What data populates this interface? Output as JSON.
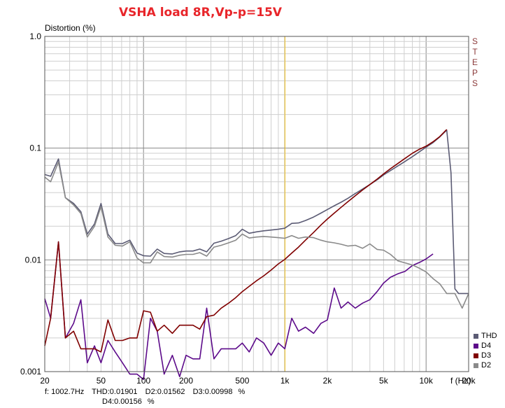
{
  "chart_data": {
    "type": "line",
    "title": "VSHA load 8R,Vp-p=15V",
    "ylabel": "Distortion (%)",
    "xlabel": "f (Hz)",
    "xscale": "log",
    "yscale": "log",
    "xlim": [
      20,
      20000
    ],
    "ylim": [
      0.001,
      1.0
    ],
    "x_tick_labels": [
      "20",
      "50",
      "100",
      "200",
      "500",
      "1k",
      "2k",
      "5k",
      "10k",
      "20k"
    ],
    "x_tick_values": [
      20,
      50,
      100,
      200,
      500,
      1000,
      2000,
      5000,
      10000,
      20000
    ],
    "y_tick_labels": [
      "1.0",
      "0.1",
      "0.01",
      "0.001"
    ],
    "y_tick_values": [
      1.0,
      0.1,
      0.01,
      0.001
    ],
    "grid": true,
    "cursor_x": 1002.7,
    "side_label": "STEPS",
    "legend_position": "bottom-right",
    "series": [
      {
        "name": "THD",
        "color": "#5b5b74",
        "x": [
          20,
          22,
          25,
          28,
          32,
          36,
          40,
          45,
          50,
          56,
          63,
          71,
          80,
          90,
          100,
          112,
          125,
          140,
          160,
          180,
          200,
          224,
          250,
          280,
          315,
          355,
          400,
          450,
          500,
          560,
          630,
          710,
          800,
          900,
          1000,
          1120,
          1250,
          1400,
          1600,
          1800,
          2000,
          2240,
          2500,
          2800,
          3150,
          3550,
          4000,
          4500,
          5000,
          5600,
          6300,
          7100,
          8000,
          9000,
          10000,
          11200,
          12500,
          14000,
          15000,
          16000,
          17000,
          18000,
          20000
        ],
        "y": [
          0.058,
          0.056,
          0.08,
          0.036,
          0.032,
          0.027,
          0.017,
          0.021,
          0.032,
          0.017,
          0.014,
          0.014,
          0.015,
          0.0115,
          0.0109,
          0.0108,
          0.0125,
          0.0114,
          0.0113,
          0.0118,
          0.012,
          0.012,
          0.0125,
          0.0118,
          0.0141,
          0.0147,
          0.0155,
          0.0165,
          0.0188,
          0.0173,
          0.0178,
          0.0182,
          0.0185,
          0.0188,
          0.0192,
          0.0212,
          0.0214,
          0.0225,
          0.0242,
          0.0262,
          0.0282,
          0.0305,
          0.0328,
          0.0356,
          0.0392,
          0.043,
          0.0472,
          0.052,
          0.0575,
          0.063,
          0.0692,
          0.076,
          0.084,
          0.093,
          0.102,
          0.112,
          0.126,
          0.145,
          0.06,
          0.0055,
          0.005,
          0.005,
          0.005
        ]
      },
      {
        "name": "D4",
        "color": "#5c0a8a",
        "x": [
          20,
          22,
          25,
          28,
          32,
          36,
          40,
          45,
          50,
          56,
          63,
          71,
          80,
          90,
          100,
          112,
          125,
          140,
          160,
          180,
          200,
          224,
          250,
          280,
          315,
          355,
          400,
          450,
          500,
          560,
          630,
          710,
          800,
          900,
          1000,
          1120,
          1250,
          1400,
          1600,
          1800,
          2000,
          2240,
          2500,
          2800,
          3150,
          3550,
          4000,
          4500,
          5000,
          5600,
          6300,
          7100,
          8000,
          9000,
          10000,
          11200
        ],
        "y": [
          0.0045,
          0.003,
          0.0145,
          0.002,
          0.0027,
          0.0044,
          0.0012,
          0.0017,
          0.0012,
          0.0019,
          0.0015,
          0.0012,
          0.00095,
          0.00095,
          0.00085,
          0.003,
          0.0023,
          0.00095,
          0.0014,
          0.0009,
          0.0014,
          0.0013,
          0.0013,
          0.0037,
          0.0013,
          0.0016,
          0.0016,
          0.0016,
          0.0018,
          0.0015,
          0.002,
          0.0018,
          0.0014,
          0.0018,
          0.0016,
          0.003,
          0.0023,
          0.0025,
          0.0022,
          0.0027,
          0.0029,
          0.0056,
          0.0037,
          0.0042,
          0.0037,
          0.0041,
          0.0044,
          0.0052,
          0.0062,
          0.007,
          0.0075,
          0.0079,
          0.0089,
          0.0095,
          0.0102,
          0.0113
        ]
      },
      {
        "name": "D3",
        "color": "#800000",
        "x": [
          20,
          22,
          25,
          28,
          32,
          36,
          40,
          45,
          50,
          56,
          63,
          71,
          80,
          90,
          100,
          112,
          125,
          140,
          160,
          180,
          200,
          224,
          250,
          280,
          315,
          355,
          400,
          450,
          500,
          560,
          630,
          710,
          800,
          900,
          1000,
          1120,
          1250,
          1400,
          1600,
          1800,
          2000,
          2240,
          2500,
          2800,
          3150,
          3550,
          4000,
          4500,
          5000,
          5600,
          6300,
          7100,
          8000,
          9000,
          10000,
          11200,
          12500,
          14000
        ],
        "y": [
          0.0017,
          0.003,
          0.0145,
          0.002,
          0.0023,
          0.0016,
          0.0016,
          0.0016,
          0.0015,
          0.0029,
          0.0019,
          0.0019,
          0.002,
          0.002,
          0.0035,
          0.0034,
          0.0023,
          0.0026,
          0.0022,
          0.0026,
          0.0026,
          0.0026,
          0.0024,
          0.0031,
          0.0032,
          0.0037,
          0.0041,
          0.0046,
          0.0052,
          0.0058,
          0.0065,
          0.0072,
          0.0081,
          0.0092,
          0.0101,
          0.0115,
          0.013,
          0.015,
          0.0176,
          0.0205,
          0.0232,
          0.0262,
          0.0295,
          0.0332,
          0.0375,
          0.0422,
          0.0472,
          0.0528,
          0.0588,
          0.0655,
          0.0728,
          0.081,
          0.09,
          0.098,
          0.104,
          0.114,
          0.127,
          0.147
        ]
      },
      {
        "name": "D2",
        "color": "#8a8a8a",
        "x": [
          20,
          22,
          25,
          28,
          32,
          36,
          40,
          45,
          50,
          56,
          63,
          71,
          80,
          90,
          100,
          112,
          125,
          140,
          160,
          180,
          200,
          224,
          250,
          280,
          315,
          355,
          400,
          450,
          500,
          560,
          630,
          710,
          800,
          900,
          1000,
          1120,
          1250,
          1400,
          1600,
          1800,
          2000,
          2240,
          2500,
          2800,
          3150,
          3550,
          4000,
          4500,
          5000,
          5600,
          6300,
          7100,
          8000,
          9000,
          10000,
          11200,
          12500,
          14000,
          16000,
          18000,
          20000
        ],
        "y": [
          0.055,
          0.05,
          0.075,
          0.036,
          0.031,
          0.026,
          0.016,
          0.02,
          0.03,
          0.016,
          0.0135,
          0.0133,
          0.0145,
          0.0104,
          0.0094,
          0.0094,
          0.0118,
          0.0107,
          0.0106,
          0.011,
          0.0112,
          0.0112,
          0.0116,
          0.0108,
          0.013,
          0.0135,
          0.0142,
          0.015,
          0.017,
          0.0157,
          0.016,
          0.0162,
          0.016,
          0.0158,
          0.0156,
          0.0165,
          0.0156,
          0.016,
          0.0158,
          0.015,
          0.0145,
          0.0142,
          0.0138,
          0.0133,
          0.0135,
          0.0127,
          0.0139,
          0.0124,
          0.0122,
          0.0112,
          0.0098,
          0.0094,
          0.009,
          0.0084,
          0.0078,
          0.0068,
          0.0061,
          0.005,
          0.005,
          0.0037,
          0.005
        ]
      }
    ]
  },
  "readout": {
    "freq": "f: 1002.7Hz",
    "thd": "THD:0.01901",
    "d2": "D2:0.01562",
    "d3": "D3:0.00998",
    "pct1": "%",
    "d4": "D4:0.00156",
    "pct2": "%"
  }
}
